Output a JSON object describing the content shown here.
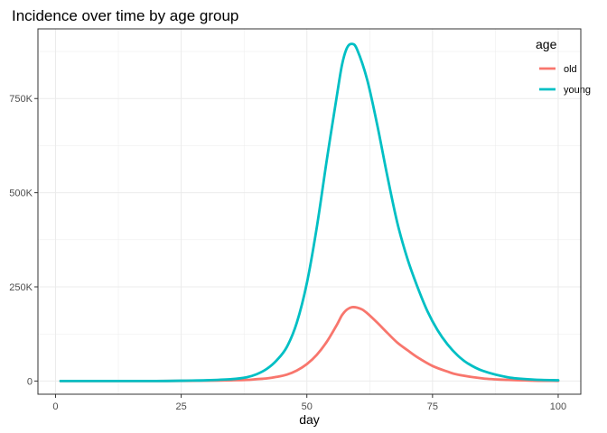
{
  "chart_data": {
    "type": "line",
    "title": "Incidence over time by age group",
    "xlabel": "day",
    "ylabel": "",
    "xlim": [
      -3.5,
      104.5
    ],
    "ylim": [
      -35000,
      935000
    ],
    "x_ticks": [
      0,
      25,
      50,
      75,
      100
    ],
    "x_tick_labels": [
      "0",
      "25",
      "50",
      "75",
      "100"
    ],
    "y_ticks": [
      0,
      250000,
      500000,
      750000
    ],
    "y_tick_labels": [
      "0",
      "250K",
      "500K",
      "750K"
    ],
    "grid": true,
    "legend": {
      "title": "age",
      "position": "top-right"
    },
    "series": [
      {
        "name": "old",
        "color": "#F8766D",
        "x": [
          1,
          10,
          20,
          26,
          30,
          35,
          38,
          40,
          42,
          44,
          46,
          48,
          50,
          52,
          54,
          56,
          57,
          58,
          59,
          60,
          61,
          62,
          64,
          66,
          68,
          70,
          72,
          75,
          78,
          80,
          85,
          90,
          95,
          100
        ],
        "y": [
          0,
          0,
          0,
          500,
          1000,
          2000,
          3000,
          5000,
          7000,
          11000,
          17000,
          28000,
          45000,
          70000,
          105000,
          150000,
          175000,
          190000,
          196000,
          195000,
          190000,
          180000,
          155000,
          128000,
          102000,
          82000,
          63000,
          40000,
          25000,
          17000,
          7000,
          3000,
          1000,
          500
        ]
      },
      {
        "name": "young",
        "color": "#00BFC4",
        "x": [
          1,
          10,
          20,
          26,
          30,
          35,
          38,
          40,
          42,
          44,
          46,
          48,
          50,
          52,
          54,
          56,
          57,
          58,
          59,
          60,
          62,
          64,
          66,
          68,
          70,
          72,
          74,
          76,
          78,
          80,
          82,
          85,
          90,
          95,
          100
        ],
        "y": [
          0,
          0,
          0,
          1000,
          2000,
          5000,
          10000,
          18000,
          32000,
          55000,
          90000,
          155000,
          260000,
          410000,
          590000,
          760000,
          840000,
          885000,
          895000,
          880000,
          800000,
          680000,
          545000,
          420000,
          325000,
          250000,
          185000,
          135000,
          97000,
          68000,
          47000,
          27000,
          10000,
          4000,
          2000
        ]
      }
    ]
  }
}
